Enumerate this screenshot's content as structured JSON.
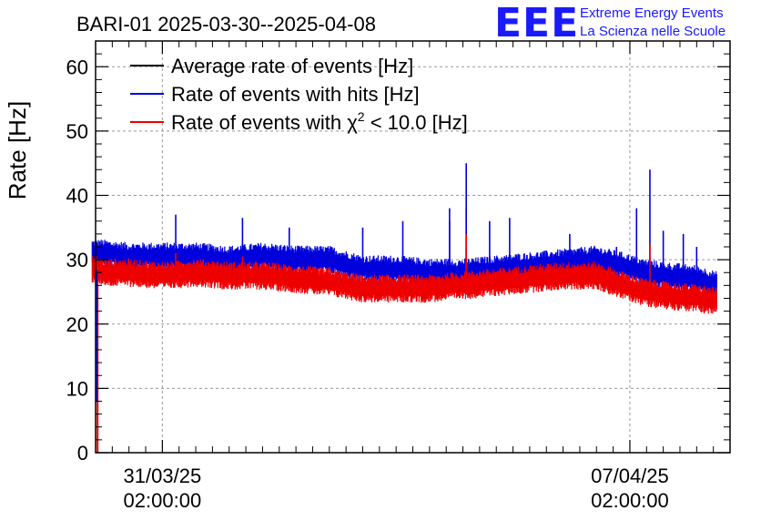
{
  "logo": {
    "mark": "EEE",
    "line1": "Extreme Energy Events",
    "line2": "La Scienza nelle Scuole",
    "color": "#1a1aff"
  },
  "chart_data": {
    "type": "line",
    "title": "BARI-01 2025-03-30--2025-04-08",
    "ylabel": "Rate [Hz]",
    "xlabel": "",
    "ylim": [
      0,
      64
    ],
    "yticks": [
      0,
      10,
      20,
      30,
      40,
      50,
      60
    ],
    "x_unit": "days since 2025-03-30 02:00:00",
    "xlim": [
      0,
      9.5
    ],
    "xticks": [
      {
        "x": 1.0,
        "line1": "31/03/25",
        "line2": "02:00:00"
      },
      {
        "x": 8.0,
        "line1": "07/04/25",
        "line2": "02:00:00"
      }
    ],
    "grid": true,
    "legend_position": "top-left",
    "series": [
      {
        "name": "Average rate of events [Hz]",
        "color": "#000000",
        "x": [],
        "y": []
      },
      {
        "name": "Rate of events with hits [Hz]",
        "color": "#0000dd",
        "x": [
          -0.05,
          0.0,
          0.1,
          0.5,
          1.0,
          1.5,
          2.0,
          2.5,
          3.0,
          3.5,
          4.0,
          4.5,
          5.0,
          5.5,
          6.0,
          6.5,
          7.0,
          7.5,
          7.9,
          8.2,
          8.5,
          9.0,
          9.3
        ],
        "y": [
          31.0,
          31.0,
          31.0,
          30.5,
          30.5,
          30.5,
          30.0,
          30.5,
          30.0,
          30.0,
          28.5,
          28.5,
          28.0,
          28.0,
          28.5,
          29.0,
          29.5,
          30.0,
          29.0,
          28.0,
          27.5,
          27.0,
          26.0
        ],
        "spikes": [
          [
            1.2,
            37
          ],
          [
            2.2,
            36.5
          ],
          [
            2.9,
            35
          ],
          [
            4.0,
            35
          ],
          [
            4.6,
            36
          ],
          [
            5.3,
            36
          ],
          [
            5.3,
            38
          ],
          [
            5.55,
            45
          ],
          [
            5.55,
            38
          ],
          [
            5.9,
            36
          ],
          [
            6.2,
            36.5
          ],
          [
            7.1,
            34
          ],
          [
            7.8,
            32
          ],
          [
            8.1,
            38
          ],
          [
            8.3,
            44
          ],
          [
            8.5,
            34.5
          ],
          [
            8.8,
            34
          ],
          [
            9.0,
            32
          ]
        ]
      },
      {
        "name": "Rate of events with χ² < 10.0 [Hz]",
        "color": "#ee0000",
        "x": [
          -0.05,
          0.0,
          0.1,
          0.5,
          1.0,
          1.5,
          2.0,
          2.5,
          3.0,
          3.5,
          4.0,
          4.5,
          5.0,
          5.5,
          6.0,
          6.5,
          7.0,
          7.5,
          7.9,
          8.2,
          8.5,
          9.0,
          9.3
        ],
        "y": [
          28.5,
          28.5,
          28.0,
          28.0,
          27.5,
          28.0,
          27.5,
          27.5,
          27.0,
          26.5,
          25.5,
          25.5,
          25.5,
          26.0,
          26.5,
          27.0,
          27.5,
          27.5,
          26.0,
          25.0,
          24.5,
          24.0,
          23.5
        ],
        "spikes": [
          [
            5.55,
            34
          ],
          [
            5.55,
            32
          ],
          [
            8.3,
            32.5
          ],
          [
            1.2,
            31
          ],
          [
            2.2,
            30.5
          ]
        ],
        "dip": {
          "x": 0.03,
          "y": 0
        }
      }
    ],
    "legend_chi_label_prefix": "Rate of events with ",
    "legend_chi_symbol": "χ",
    "legend_chi_sup": "2",
    "legend_chi_suffix": " < 10.0 [Hz]"
  }
}
